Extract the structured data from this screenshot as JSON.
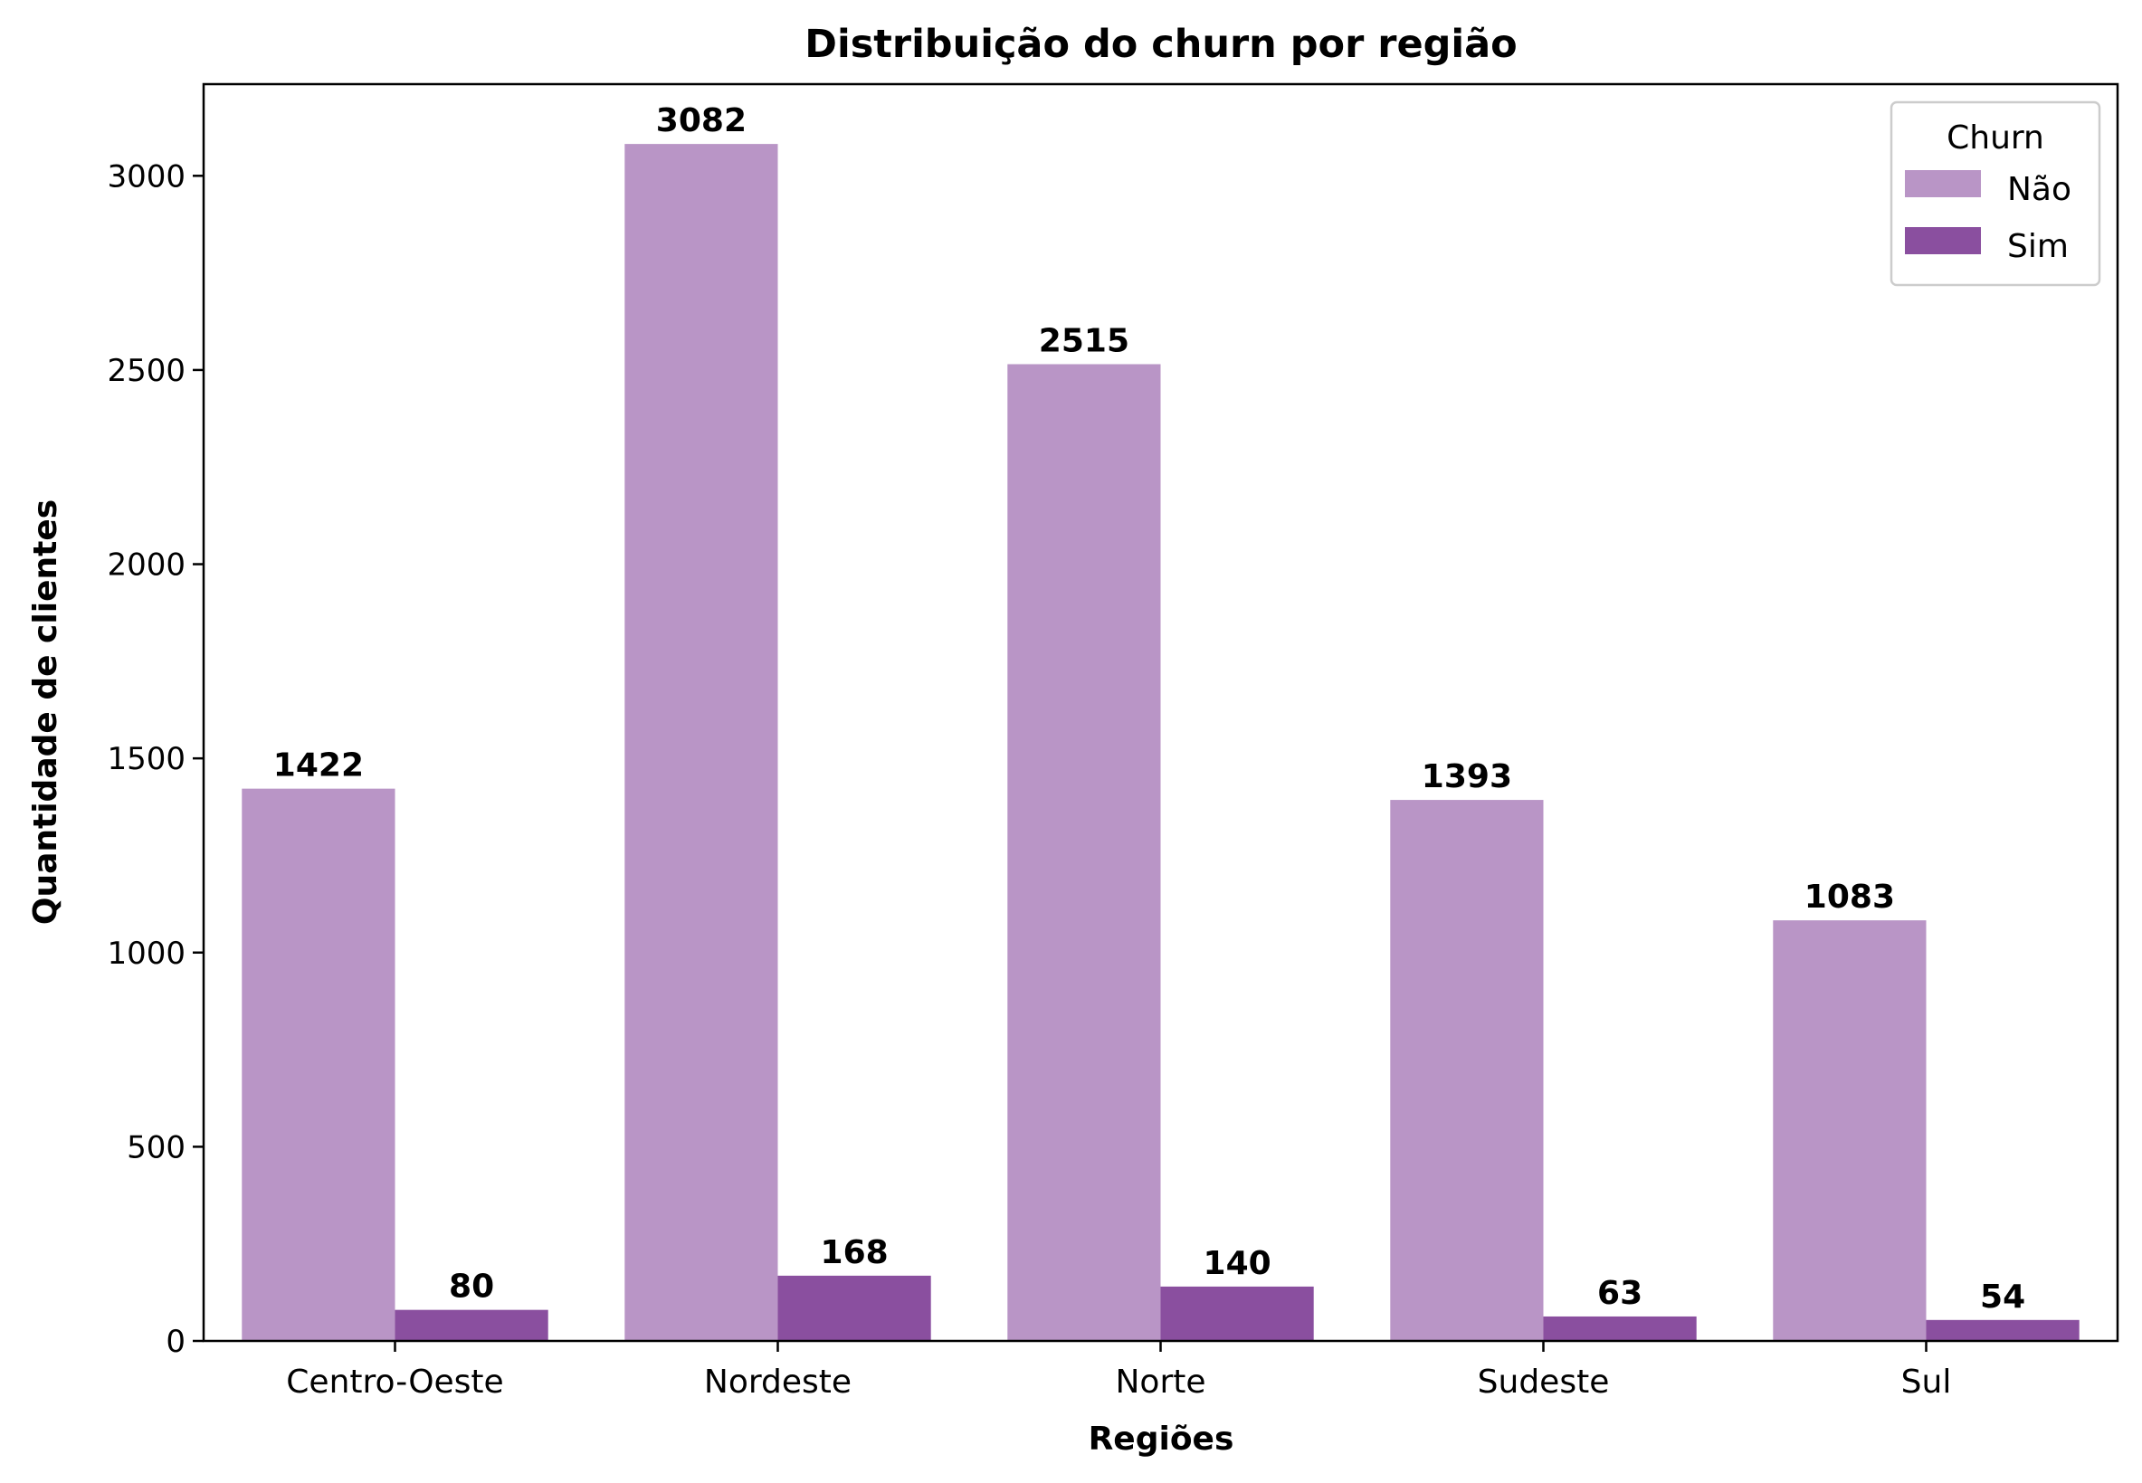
{
  "chart_data": {
    "type": "bar",
    "title": "Distribuição do churn por região",
    "xlabel": "Regiões",
    "ylabel": "Quantidade de clientes",
    "categories": [
      "Centro-Oeste",
      "Nordeste",
      "Norte",
      "Sudeste",
      "Sul"
    ],
    "series": [
      {
        "name": "Não",
        "color": "#b995c6",
        "values": [
          1422,
          3082,
          2515,
          1393,
          1083
        ]
      },
      {
        "name": "Sim",
        "color": "#8a4f9f",
        "values": [
          80,
          168,
          140,
          63,
          54
        ]
      }
    ],
    "yticks": [
      0,
      500,
      1000,
      1500,
      2000,
      2500,
      3000
    ],
    "ylim": [
      0,
      3236
    ],
    "legend": {
      "title": "Churn",
      "position": "top-right"
    },
    "grid": false
  }
}
